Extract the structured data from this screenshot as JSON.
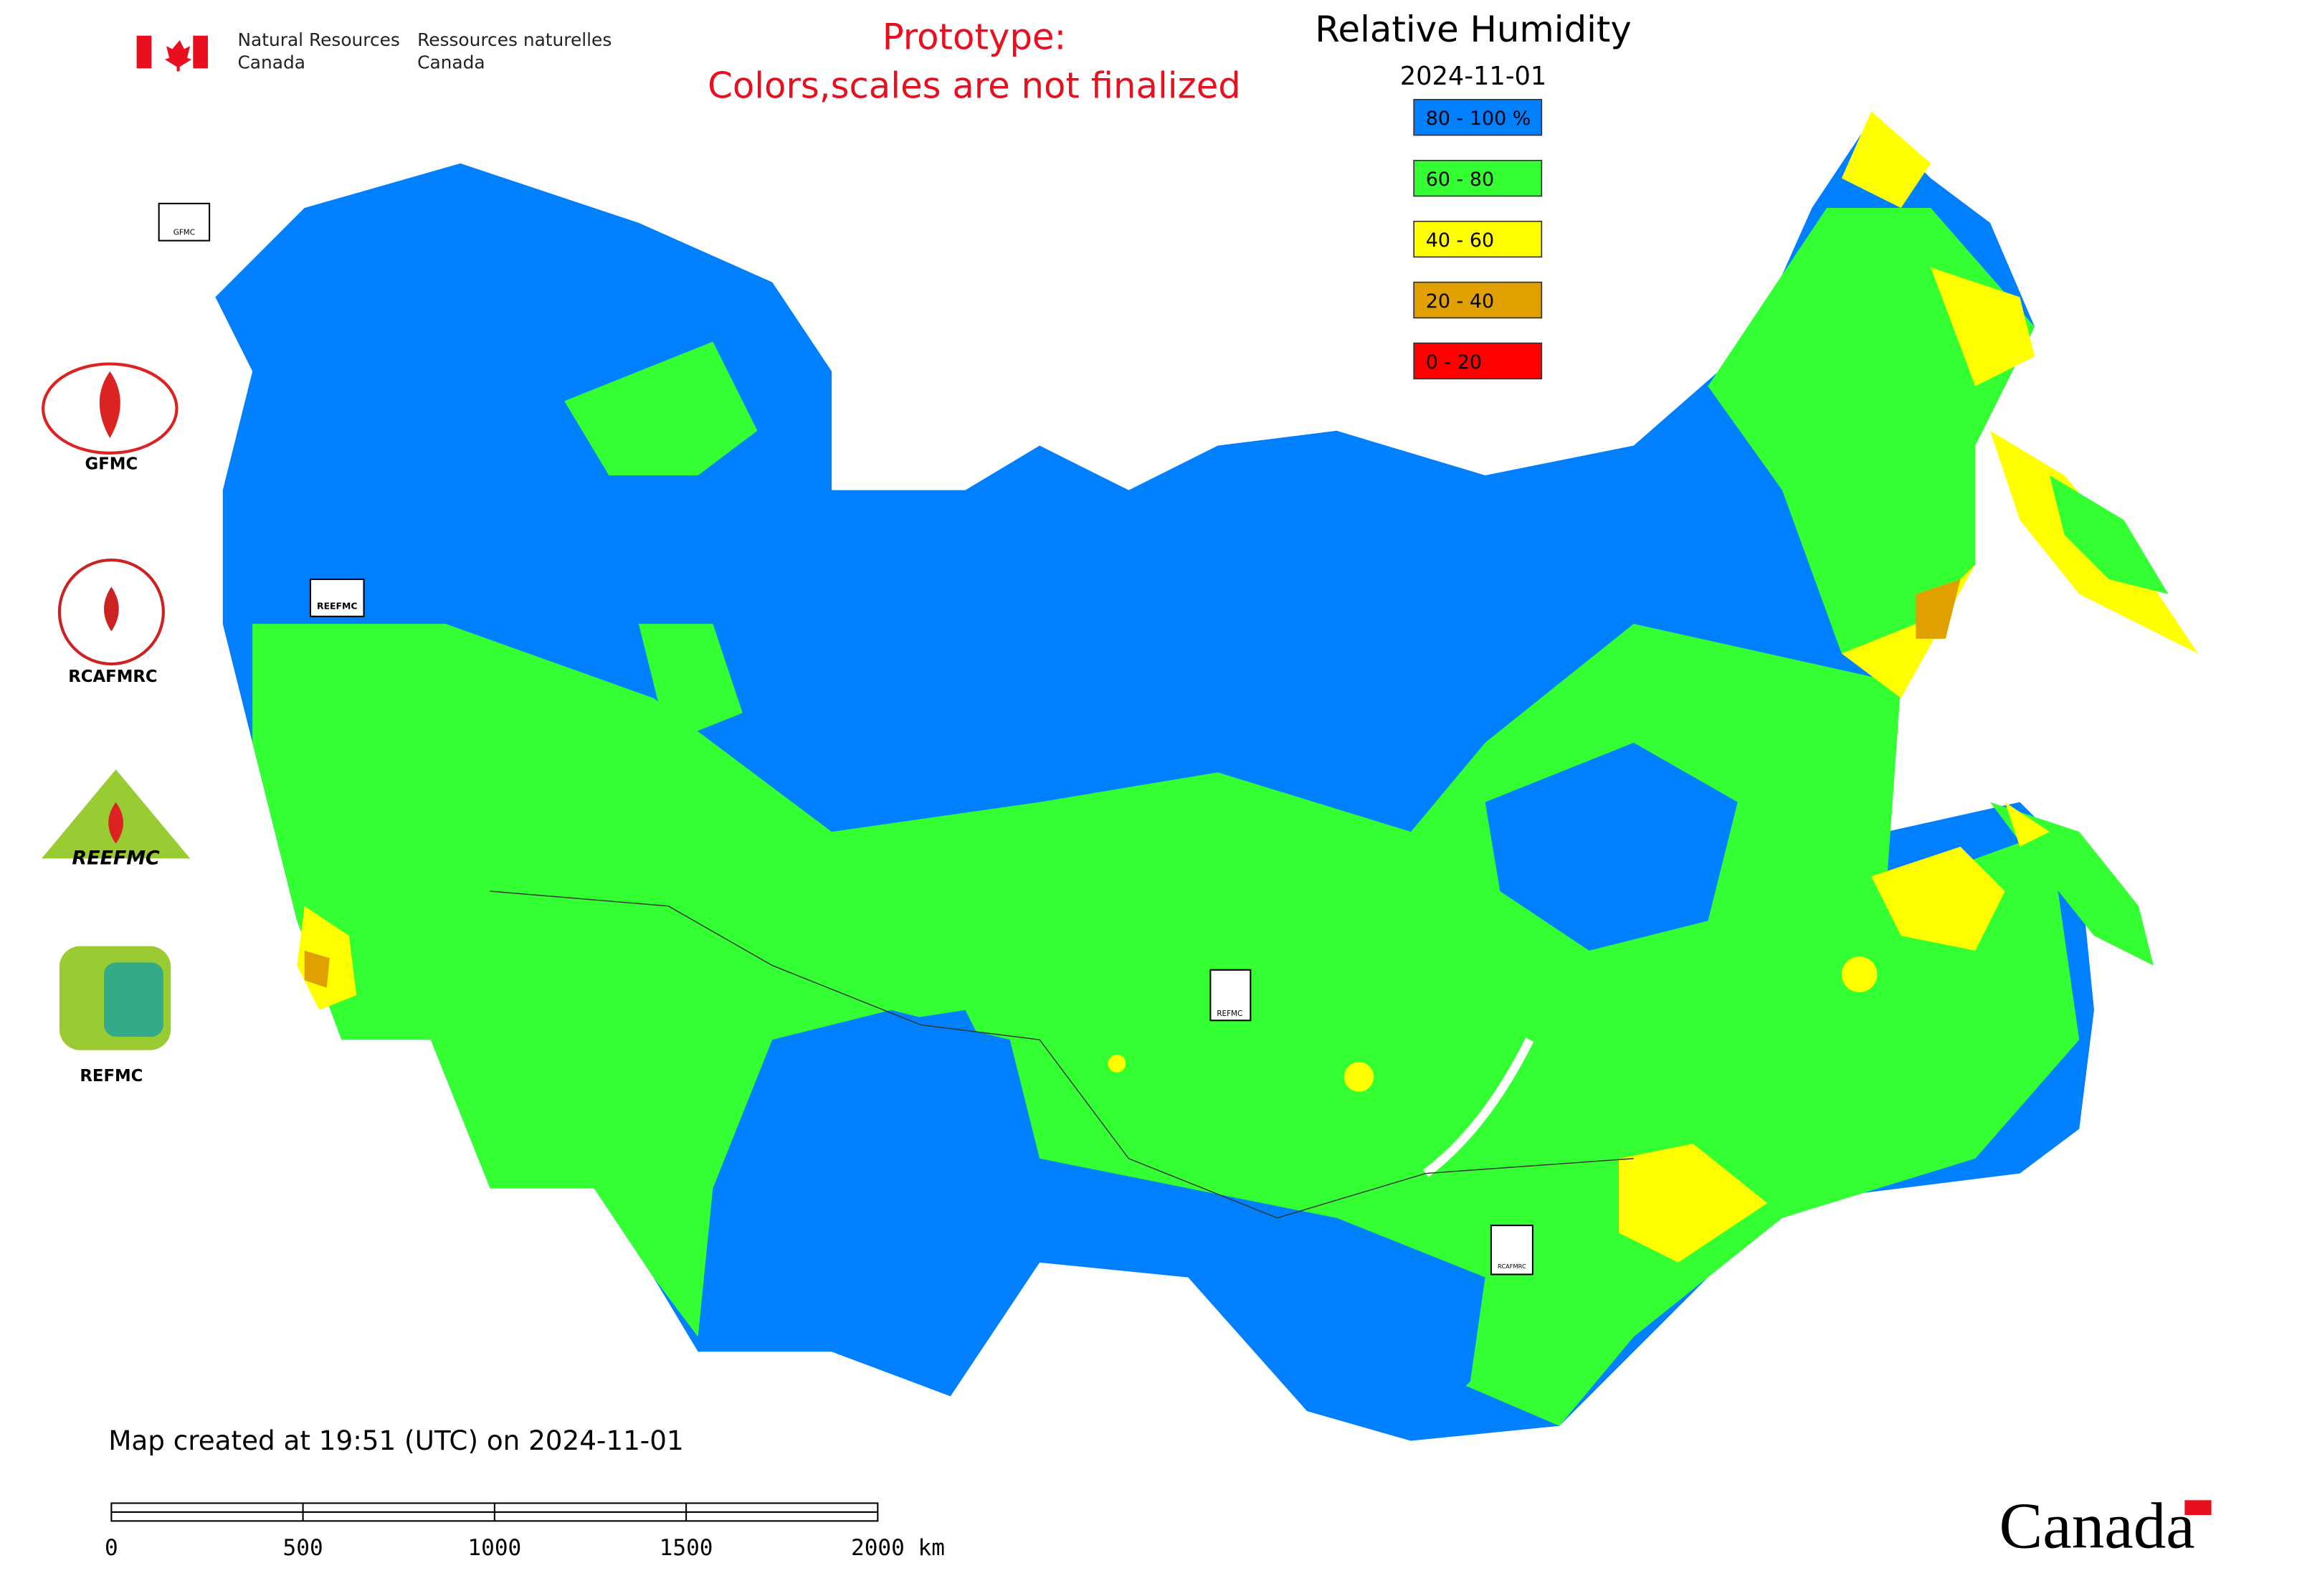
{
  "header": {
    "agency_en": [
      "Natural Resources",
      "Canada"
    ],
    "agency_fr": [
      "Ressources naturelles",
      "Canada"
    ]
  },
  "notice": [
    "Prototype:",
    "Colors,scales are not finalized"
  ],
  "legend": {
    "title": "Relative Humidity",
    "date": "2024-11-01",
    "items": [
      {
        "label": "80 - 100 %",
        "color": "#0080ff"
      },
      {
        "label": "60 - 80",
        "color": "#33ff33"
      },
      {
        "label": "40 - 60",
        "color": "#ffff00"
      },
      {
        "label": "20 - 40",
        "color": "#e0a000"
      },
      {
        "label": "0 - 20",
        "color": "#ff0000"
      }
    ]
  },
  "logos": [
    "GFMC",
    "RCAFMRC",
    "REEFMC",
    "REFMC"
  ],
  "badges": [
    "GFMC",
    "REEFMC",
    "REFMC",
    "RCAFMRC"
  ],
  "footer": {
    "created": "Map created at 19:51 (UTC) on 2024-11-01",
    "scale_labels": [
      "0",
      "500",
      "1000",
      "1500",
      "2000 km"
    ],
    "wordmark": "Canada"
  }
}
